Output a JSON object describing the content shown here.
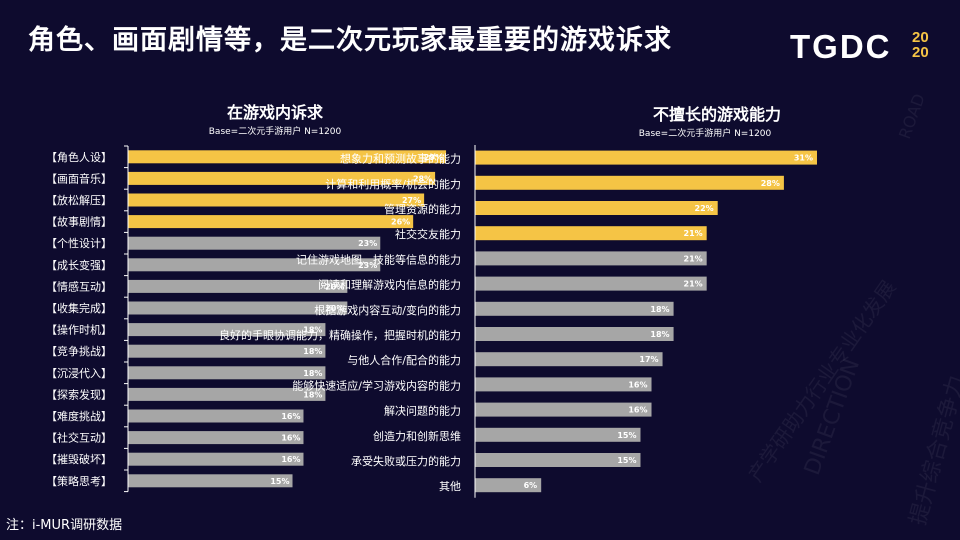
{
  "header": {
    "title": "角色、画面剧情等，是二次元玩家最重要的游戏诉求",
    "logo_text": "TGDC",
    "logo_year_top": "20",
    "logo_year_bottom": "20"
  },
  "footer": {
    "note": "注：i-MUR调研数据"
  },
  "watermark": {
    "texts": [
      "DIRECTION",
      "ROAD",
      "产学研助力行业专业化发展",
      "提升综合竞争力"
    ]
  },
  "colors": {
    "background": "#0e0b2e",
    "highlight": "#f5c445",
    "gray": "#a6a6a6",
    "axis": "#ffffff"
  },
  "chart_data": [
    {
      "type": "bar",
      "orientation": "horizontal",
      "title": "在游戏内诉求",
      "subtitle": "Base=二次元手游用户 N=1200",
      "categories": [
        "【角色人设】",
        "【画面音乐】",
        "【放松解压】",
        "【故事剧情】",
        "【个性设计】",
        "【成长变强】",
        "【情感互动】",
        "【收集完成】",
        "【操作时机】",
        "【竞争挑战】",
        "【沉浸代入】",
        "【探索发现】",
        "【难度挑战】",
        "【社交互动】",
        "【摧毁破坏】",
        "【策略思考】"
      ],
      "values": [
        29,
        28,
        27,
        26,
        23,
        23,
        20,
        20,
        18,
        18,
        18,
        18,
        16,
        16,
        16,
        15
      ],
      "labels": [
        "29%",
        "28%",
        "27%",
        "26%",
        "23%",
        "23%",
        "20%",
        "20%",
        "18%",
        "18%",
        "18%",
        "18%",
        "16%",
        "16%",
        "16%",
        "15%"
      ],
      "highlight_count": 4,
      "xlim": [
        0,
        31
      ]
    },
    {
      "type": "bar",
      "orientation": "horizontal",
      "title": "不擅长的游戏能力",
      "subtitle": "Base=二次元手游用户 N=1200",
      "categories": [
        "想象力和预测故事的能力",
        "计算和利用概率/机会的能力",
        "管理资源的能力",
        "社交交友能力",
        "记住游戏地图、技能等信息的能力",
        "阅读和理解游戏内信息的能力",
        "根据游戏内容互动/变向的能力",
        "良好的手眼协调能力，精确操作，把握时机的能力",
        "与他人合作/配合的能力",
        "能够快速适应/学习游戏内容的能力",
        "解决问题的能力",
        "创造力和创新思维",
        "承受失败或压力的能力",
        "其他"
      ],
      "values": [
        31,
        28,
        22,
        21,
        21,
        21,
        18,
        18,
        17,
        16,
        16,
        15,
        15,
        6
      ],
      "labels": [
        "31%",
        "28%",
        "22%",
        "21%",
        "21%",
        "21%",
        "18%",
        "18%",
        "17%",
        "16%",
        "16%",
        "15%",
        "15%",
        "6%"
      ],
      "highlight_count": 4,
      "xlim": [
        0,
        31
      ]
    }
  ]
}
